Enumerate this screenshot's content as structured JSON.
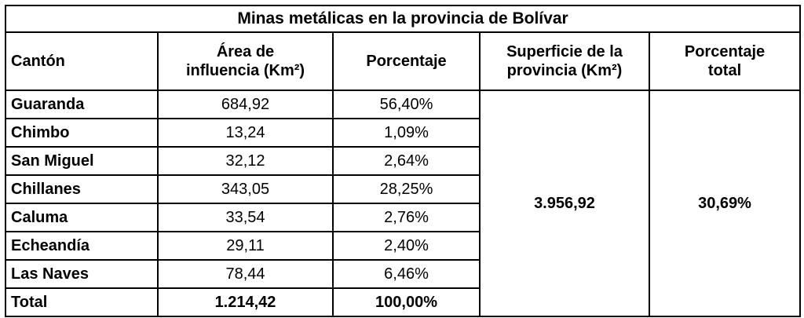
{
  "table": {
    "title": "Minas metálicas en la provincia de Bolívar",
    "header": [
      [
        "Cantón"
      ],
      [
        "Área de",
        "influencia (Km²)"
      ],
      [
        "Porcentaje"
      ],
      [
        "Superficie de la",
        "provincia (Km²)"
      ],
      [
        "Porcentaje",
        "total"
      ]
    ],
    "rows": [
      [
        "Guaranda",
        "684,92",
        "56,40%"
      ],
      [
        "Chimbo",
        "13,24",
        "1,09%"
      ],
      [
        "San Miguel",
        "32,12",
        "2,64%"
      ],
      [
        "Chillanes",
        "343,05",
        "28,25%"
      ],
      [
        "Caluma",
        "33,54",
        "2,76%"
      ],
      [
        "Echeandía",
        "29,11",
        "2,40%"
      ],
      [
        "Las Naves",
        "78,44",
        "6,46%"
      ]
    ],
    "total": [
      "Total",
      "1.214,42",
      "100,00%"
    ],
    "province_area": "3.956,92",
    "total_percentage": "30,69%"
  }
}
